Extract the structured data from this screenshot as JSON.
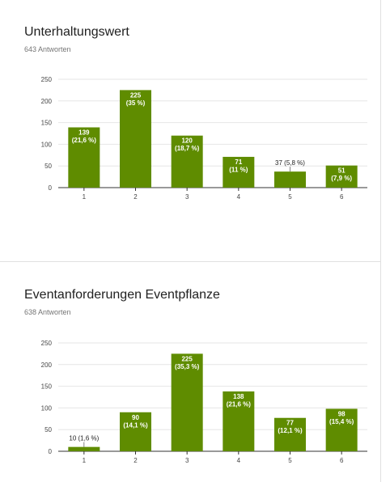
{
  "colors": {
    "bar": "#5f8c00",
    "grid": "#e6e6e6",
    "axis": "#333333",
    "label_inside": "#ffffff",
    "label_outside": "#222222"
  },
  "questions": [
    {
      "title": "Unterhaltungswert",
      "responses": "643 Antworten",
      "chart_data": {
        "type": "bar",
        "categories": [
          "1",
          "2",
          "3",
          "4",
          "5",
          "6"
        ],
        "values": [
          139,
          225,
          120,
          71,
          37,
          51
        ],
        "data_labels": [
          [
            "139",
            "(21,6 %)"
          ],
          [
            "225",
            "(35 %)"
          ],
          [
            "120",
            "(18,7 %)"
          ],
          [
            "71",
            "(11 %)"
          ],
          [
            "37 (5,8 %)"
          ],
          [
            "51",
            "(7,9 %)"
          ]
        ],
        "yticks": [
          "0",
          "50",
          "100",
          "150",
          "200",
          "250"
        ],
        "ylim": [
          0,
          250
        ],
        "grid": true
      }
    },
    {
      "title": "Eventanforderungen Eventpflanze",
      "responses": "638 Antworten",
      "chart_data": {
        "type": "bar",
        "categories": [
          "1",
          "2",
          "3",
          "4",
          "5",
          "6"
        ],
        "values": [
          10,
          90,
          225,
          138,
          77,
          98
        ],
        "data_labels": [
          [
            "10 (1,6 %)"
          ],
          [
            "90",
            "(14,1 %)"
          ],
          [
            "225",
            "(35,3 %)"
          ],
          [
            "138",
            "(21,6 %)"
          ],
          [
            "77",
            "(12,1 %)"
          ],
          [
            "98",
            "(15,4 %)"
          ]
        ],
        "yticks": [
          "0",
          "50",
          "100",
          "150",
          "200",
          "250"
        ],
        "ylim": [
          0,
          250
        ],
        "grid": true
      }
    }
  ]
}
